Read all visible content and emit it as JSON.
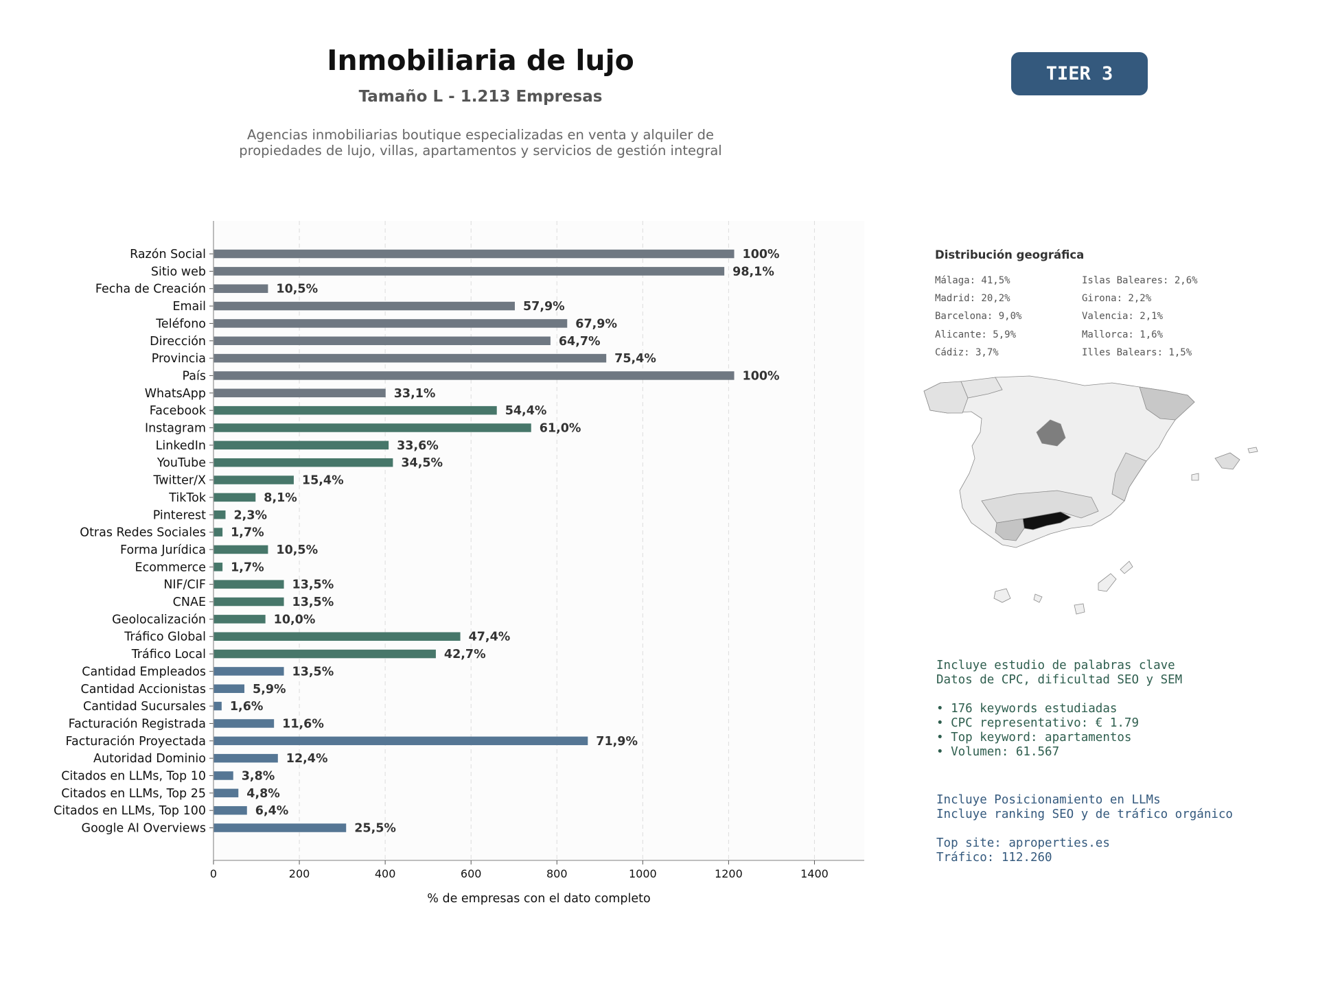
{
  "header": {
    "title": "Inmobiliaria de lujo",
    "subtitle": "Tamaño L - 1.213 Empresas",
    "description": "Agencias inmobiliarias boutique especializadas en venta y alquiler de propiedades de lujo, villas, apartamentos y servicios de gestión integral",
    "tier": "TIER 3"
  },
  "colors": {
    "gray": "#6f7882",
    "green": "#47776a",
    "blue": "#557694",
    "tier_bg": "#34597d"
  },
  "chart_data": {
    "type": "bar",
    "orientation": "horizontal",
    "xlabel": "% de empresas con el dato completo",
    "xlim": [
      0,
      1516
    ],
    "xticks": [
      "0",
      "200",
      "400",
      "600",
      "800",
      "1000",
      "1200",
      "1400"
    ],
    "grid": "vertical dashed",
    "total": 1213,
    "categories": [
      "Razón Social",
      "Sitio web",
      "Fecha de Creación",
      "Email",
      "Teléfono",
      "Dirección",
      "Provincia",
      "País",
      "WhatsApp",
      "Facebook",
      "Instagram",
      "LinkedIn",
      "YouTube",
      "Twitter/X",
      "TikTok",
      "Pinterest",
      "Otras Redes Sociales",
      "Forma Jurídica",
      "Ecommerce",
      "NIF/CIF",
      "CNAE",
      "Geolocalización",
      "Tráfico Global",
      "Tráfico Local",
      "Cantidad Empleados",
      "Cantidad Accionistas",
      "Cantidad Sucursales",
      "Facturación Registrada",
      "Facturación Proyectada",
      "Autoridad Dominio",
      "Citados en LLMs, Top 10",
      "Citados en LLMs, Top 25",
      "Citados en LLMs, Top 100",
      "Google AI Overviews"
    ],
    "values": [
      1213,
      1190,
      127,
      702,
      824,
      785,
      915,
      1213,
      401,
      660,
      740,
      408,
      418,
      187,
      98,
      28,
      21,
      127,
      21,
      164,
      164,
      121,
      575,
      518,
      164,
      72,
      19,
      141,
      872,
      150,
      46,
      58,
      78,
      309
    ],
    "labels": [
      "100%",
      "98,1%",
      "10,5%",
      "57,9%",
      "67,9%",
      "64,7%",
      "75,4%",
      "100%",
      "33,1%",
      "54,4%",
      "61,0%",
      "33,6%",
      "34,5%",
      "15,4%",
      "8,1%",
      "2,3%",
      "1,7%",
      "10,5%",
      "1,7%",
      "13,5%",
      "13,5%",
      "10,0%",
      "47,4%",
      "42,7%",
      "13,5%",
      "5,9%",
      "1,6%",
      "11,6%",
      "71,9%",
      "12,4%",
      "3,8%",
      "4,8%",
      "6,4%",
      "25,5%"
    ],
    "groups": [
      "gray",
      "gray",
      "gray",
      "gray",
      "gray",
      "gray",
      "gray",
      "gray",
      "gray",
      "green",
      "green",
      "green",
      "green",
      "green",
      "green",
      "green",
      "green",
      "green",
      "green",
      "green",
      "green",
      "green",
      "green",
      "green",
      "blue",
      "blue",
      "blue",
      "blue",
      "blue",
      "blue",
      "blue",
      "blue",
      "blue",
      "blue"
    ]
  },
  "geo": {
    "title": "Distribución geográfica",
    "left": [
      "Málaga: 41,5%",
      "Madrid: 20,2%",
      "Barcelona: 9,0%",
      "Alicante: 5,9%",
      "Cádiz: 3,7%"
    ],
    "right": [
      "Islas Baleares: 2,6%",
      "Girona: 2,2%",
      "Valencia: 2,1%",
      "Mallorca: 1,6%",
      "Illes Balears: 1,5%"
    ]
  },
  "keywords": {
    "line1": "Incluye estudio de palabras clave",
    "line2": "Datos de CPC, dificultad SEO y SEM",
    "b1": "• 176 keywords estudiadas",
    "b2": "• CPC representativo: € 1.79",
    "b3": "• Top keyword: apartamentos",
    "b4": "• Volumen: 61.567"
  },
  "llm": {
    "line1": "Incluye Posicionamiento en LLMs",
    "line2": "Incluye ranking SEO y de tráfico orgánico",
    "line3": "Top site: aproperties.es",
    "line4": "Tráfico: 112.260"
  }
}
